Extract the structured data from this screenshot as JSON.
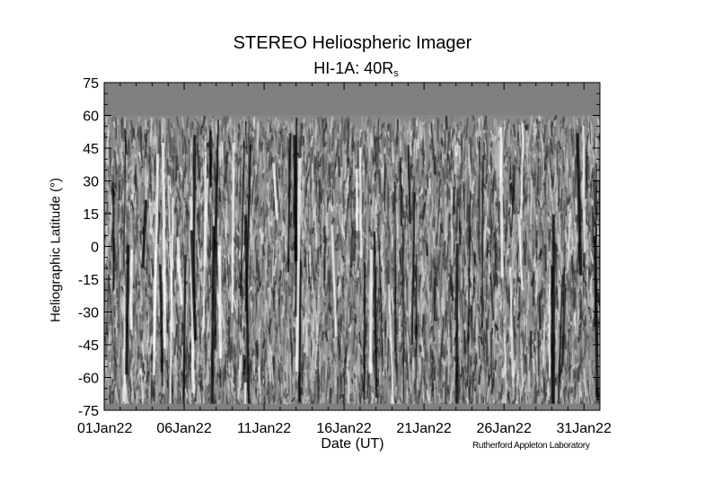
{
  "chart_data": {
    "type": "heatmap",
    "title": "STEREO Heliospheric Imager",
    "subtitle": "HI-1A: 40R",
    "subtitle_subscript": "s",
    "xlabel": "Date (UT)",
    "ylabel": "Heliographic Latitude (°)",
    "x_tick_labels": [
      "01Jan22",
      "06Jan22",
      "11Jan22",
      "16Jan22",
      "21Jan22",
      "26Jan22",
      "31Jan22"
    ],
    "xlim": [
      "2022-01-01",
      "2022-02-01"
    ],
    "y_ticks": [
      75,
      60,
      45,
      30,
      15,
      0,
      -15,
      -30,
      -45,
      -60,
      -75
    ],
    "ylim": [
      -75,
      75
    ],
    "colormap": "grayscale",
    "no_data_color": "#808080",
    "data_coverage_latitude": [
      -72,
      60
    ],
    "grid": false,
    "credit": "Rutherford Appleton Laboratory"
  }
}
